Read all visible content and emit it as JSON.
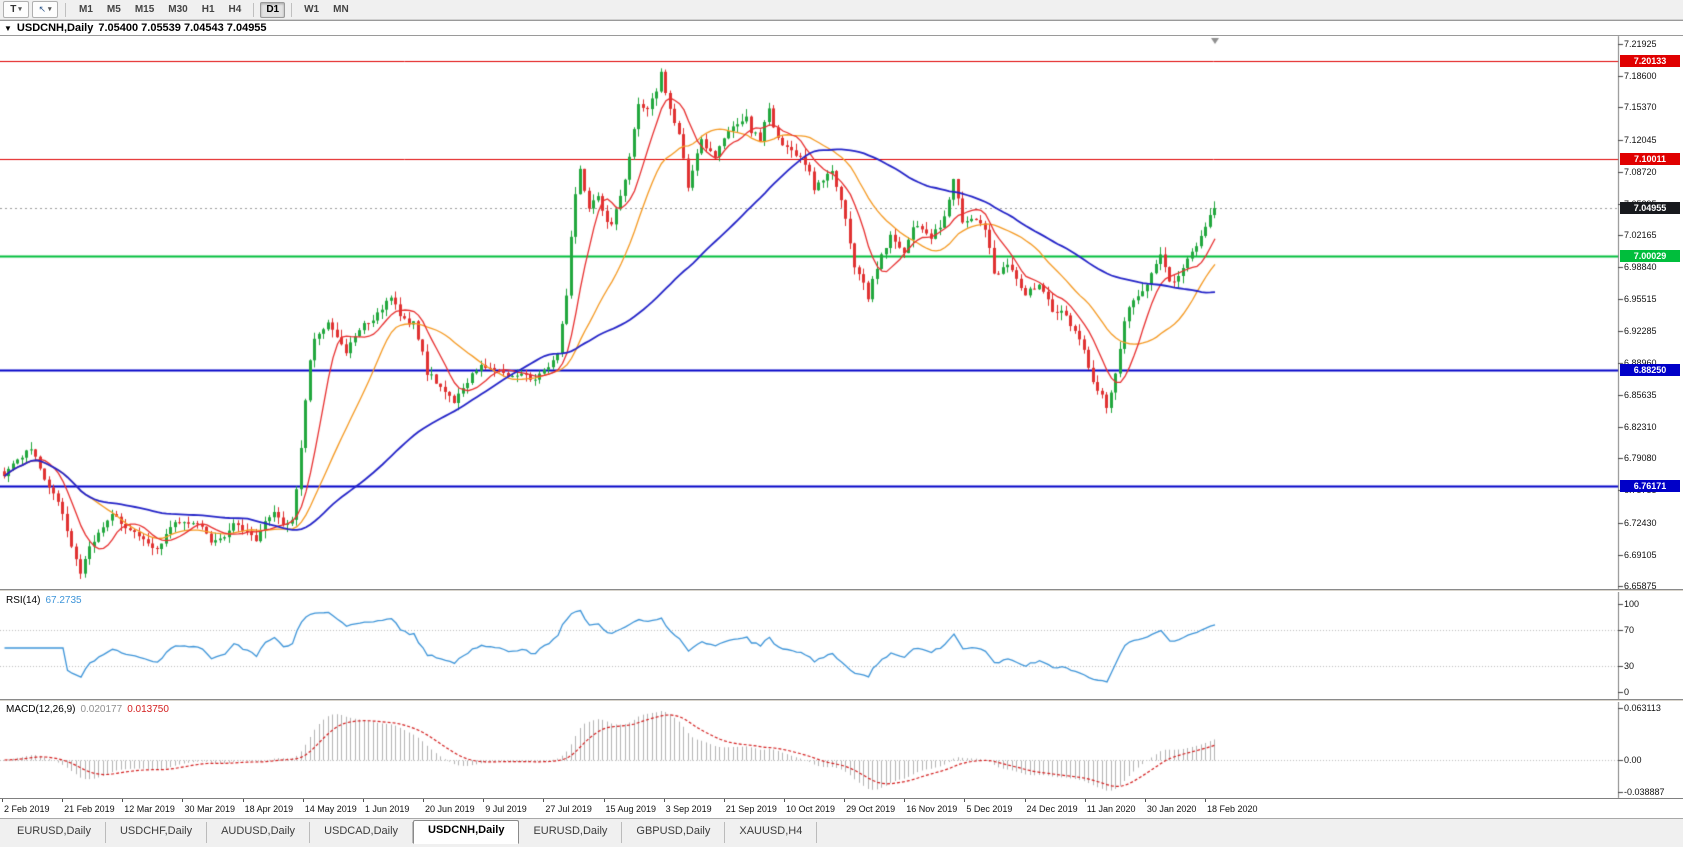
{
  "icons": {
    "dropdown_caret": "▾",
    "title_triangle": "▼",
    "cursor_arrow": "↖"
  },
  "toolbar": {
    "cursor_tool_label": "T",
    "timeframes": [
      "M1",
      "M5",
      "M15",
      "M30",
      "H1",
      "H4",
      "D1",
      "W1",
      "MN"
    ],
    "active_timeframe": "D1"
  },
  "chart": {
    "title": "USDCNH,Daily",
    "ohlc_text": "7.05400 7.05539 7.04543 7.04955",
    "current_price": "7.04955",
    "price_axis": [
      "7.21925",
      "7.18600",
      "7.15370",
      "7.12045",
      "7.08720",
      "7.05395",
      "7.02165",
      "6.98840",
      "6.95515",
      "6.92285",
      "6.88960",
      "6.85635",
      "6.82310",
      "6.79080",
      "6.75755",
      "6.72430",
      "6.69105",
      "6.65875"
    ],
    "hlines": [
      {
        "price": 7.20133,
        "label": "7.20133",
        "color": "#e00000",
        "width": 1
      },
      {
        "price": 7.10011,
        "label": "7.10011",
        "color": "#e00000",
        "width": 1
      },
      {
        "price": 7.00029,
        "label": "7.00029",
        "color": "#00be3c",
        "width": 2
      },
      {
        "price": 6.8825,
        "label": "6.88250",
        "color": "#0000c8",
        "width": 2
      },
      {
        "price": 6.76171,
        "label": "6.76171",
        "color": "#0000c8",
        "width": 2
      }
    ],
    "date_axis": [
      "2 Feb 2019",
      "21 Feb 2019",
      "12 Mar 2019",
      "30 Mar 2019",
      "18 Apr 2019",
      "14 May 2019",
      "1 Jun 2019",
      "20 Jun 2019",
      "9 Jul 2019",
      "27 Jul 2019",
      "15 Aug 2019",
      "3 Sep 2019",
      "21 Sep 2019",
      "10 Oct 2019",
      "29 Oct 2019",
      "16 Nov 2019",
      "5 Dec 2019",
      "24 Dec 2019",
      "11 Jan 2020",
      "30 Jan 2020",
      "18 Feb 2020"
    ]
  },
  "rsi": {
    "label": "RSI(14)",
    "value": "67.2735",
    "levels": [
      "100",
      "70",
      "30",
      "0"
    ],
    "dotted_levels": [
      70,
      30
    ]
  },
  "macd": {
    "label": "MACD(12,26,9)",
    "value_main": "0.020177",
    "value_signal": "0.013750",
    "axis": [
      "0.063113",
      "0.00",
      "-0.038887"
    ]
  },
  "tabs": [
    {
      "label": "EURUSD,Daily",
      "active": false
    },
    {
      "label": "USDCHF,Daily",
      "active": false
    },
    {
      "label": "AUDUSD,Daily",
      "active": false
    },
    {
      "label": "USDCAD,Daily",
      "active": false
    },
    {
      "label": "USDCNH,Daily",
      "active": true
    },
    {
      "label": "EURUSD,Daily",
      "active": false
    },
    {
      "label": "GBPUSD,Daily",
      "active": false
    },
    {
      "label": "XAUUSD,H4",
      "active": false
    }
  ],
  "chart_data": {
    "type": "candlestick",
    "symbol": "USDCNH",
    "timeframe": "Daily",
    "price_range": [
      6.65875,
      7.21925
    ],
    "num_candles": 270,
    "rsi_period": 14,
    "macd_params": [
      12,
      26,
      9
    ],
    "ma_periods": {
      "fast": 8,
      "mid": 20,
      "slow": 55
    },
    "macd_range": [
      -0.038887,
      0.063113
    ],
    "colors": {
      "bull": "#22a83e",
      "bear": "#e03232",
      "ma_fast": "#e83030",
      "ma_mid": "#f59a23",
      "ma_slow": "#2424c8",
      "rsi_line": "#3e95d9",
      "macd_hist": "#b4b4b4",
      "macd_signal": "#d42020",
      "macd_value_text": "#909090",
      "current_badge": "#17191d",
      "grid": "#bdbdbd",
      "axis_line": "#808080"
    },
    "close_anchors": [
      [
        0,
        6.775
      ],
      [
        3,
        6.79
      ],
      [
        6,
        6.802
      ],
      [
        9,
        6.77
      ],
      [
        12,
        6.747
      ],
      [
        15,
        6.7
      ],
      [
        17,
        6.672
      ],
      [
        19,
        6.698
      ],
      [
        22,
        6.72
      ],
      [
        24,
        6.732
      ],
      [
        27,
        6.72
      ],
      [
        29,
        6.713
      ],
      [
        32,
        6.7
      ],
      [
        34,
        6.696
      ],
      [
        36,
        6.71
      ],
      [
        38,
        6.726
      ],
      [
        41,
        6.722
      ],
      [
        44,
        6.719
      ],
      [
        46,
        6.705
      ],
      [
        49,
        6.712
      ],
      [
        51,
        6.722
      ],
      [
        53,
        6.716
      ],
      [
        56,
        6.708
      ],
      [
        58,
        6.728
      ],
      [
        60,
        6.735
      ],
      [
        62,
        6.72
      ],
      [
        64,
        6.73
      ],
      [
        65,
        6.757
      ],
      [
        66,
        6.8
      ],
      [
        67,
        6.85
      ],
      [
        68,
        6.893
      ],
      [
        69,
        6.915
      ],
      [
        71,
        6.924
      ],
      [
        72,
        6.93
      ],
      [
        74,
        6.915
      ],
      [
        76,
        6.9
      ],
      [
        78,
        6.916
      ],
      [
        80,
        6.93
      ],
      [
        82,
        6.936
      ],
      [
        84,
        6.946
      ],
      [
        86,
        6.956
      ],
      [
        88,
        6.94
      ],
      [
        90,
        6.928
      ],
      [
        91,
        6.932
      ],
      [
        93,
        6.9
      ],
      [
        94,
        6.88
      ],
      [
        96,
        6.87
      ],
      [
        98,
        6.86
      ],
      [
        100,
        6.848
      ],
      [
        102,
        6.862
      ],
      [
        104,
        6.88
      ],
      [
        106,
        6.885
      ],
      [
        109,
        6.882
      ],
      [
        112,
        6.874
      ],
      [
        115,
        6.877
      ],
      [
        118,
        6.873
      ],
      [
        121,
        6.883
      ],
      [
        123,
        6.9
      ],
      [
        124,
        6.93
      ],
      [
        125,
        6.962
      ],
      [
        126,
        7.02
      ],
      [
        127,
        7.062
      ],
      [
        128,
        7.09
      ],
      [
        129,
        7.068
      ],
      [
        130,
        7.05
      ],
      [
        131,
        7.056
      ],
      [
        132,
        7.062
      ],
      [
        133,
        7.045
      ],
      [
        135,
        7.03
      ],
      [
        136,
        7.046
      ],
      [
        137,
        7.06
      ],
      [
        138,
        7.08
      ],
      [
        139,
        7.1
      ],
      [
        140,
        7.13
      ],
      [
        141,
        7.158
      ],
      [
        143,
        7.152
      ],
      [
        145,
        7.17
      ],
      [
        146,
        7.192
      ],
      [
        147,
        7.168
      ],
      [
        148,
        7.15
      ],
      [
        149,
        7.14
      ],
      [
        150,
        7.128
      ],
      [
        151,
        7.1
      ],
      [
        152,
        7.07
      ],
      [
        153,
        7.09
      ],
      [
        155,
        7.12
      ],
      [
        156,
        7.114
      ],
      [
        158,
        7.1
      ],
      [
        159,
        7.112
      ],
      [
        161,
        7.13
      ],
      [
        163,
        7.135
      ],
      [
        165,
        7.142
      ],
      [
        166,
        7.13
      ],
      [
        168,
        7.12
      ],
      [
        169,
        7.136
      ],
      [
        170,
        7.15
      ],
      [
        171,
        7.134
      ],
      [
        172,
        7.12
      ],
      [
        174,
        7.11
      ],
      [
        177,
        7.1
      ],
      [
        179,
        7.086
      ],
      [
        180,
        7.07
      ],
      [
        182,
        7.08
      ],
      [
        184,
        7.09
      ],
      [
        185,
        7.074
      ],
      [
        187,
        7.04
      ],
      [
        188,
        7.012
      ],
      [
        189,
        6.99
      ],
      [
        191,
        6.97
      ],
      [
        192,
        6.958
      ],
      [
        193,
        6.976
      ],
      [
        195,
        7.0
      ],
      [
        197,
        7.02
      ],
      [
        198,
        7.012
      ],
      [
        200,
        7.0
      ],
      [
        202,
        7.03
      ],
      [
        204,
        7.026
      ],
      [
        206,
        7.02
      ],
      [
        208,
        7.032
      ],
      [
        209,
        7.04
      ],
      [
        211,
        7.078
      ],
      [
        212,
        7.058
      ],
      [
        213,
        7.032
      ],
      [
        215,
        7.036
      ],
      [
        216,
        7.04
      ],
      [
        218,
        7.03
      ],
      [
        219,
        7.006
      ],
      [
        220,
        6.982
      ],
      [
        222,
        6.986
      ],
      [
        223,
        6.99
      ],
      [
        225,
        6.976
      ],
      [
        227,
        6.962
      ],
      [
        229,
        6.966
      ],
      [
        230,
        6.97
      ],
      [
        232,
        6.955
      ],
      [
        233,
        6.94
      ],
      [
        235,
        6.946
      ],
      [
        237,
        6.93
      ],
      [
        239,
        6.914
      ],
      [
        240,
        6.9
      ],
      [
        241,
        6.886
      ],
      [
        242,
        6.87
      ],
      [
        244,
        6.854
      ],
      [
        245,
        6.844
      ],
      [
        246,
        6.86
      ],
      [
        247,
        6.88
      ],
      [
        248,
        6.906
      ],
      [
        249,
        6.93
      ],
      [
        250,
        6.944
      ],
      [
        252,
        6.96
      ],
      [
        254,
        6.97
      ],
      [
        255,
        6.98
      ],
      [
        256,
        6.99
      ],
      [
        257,
        7.002
      ],
      [
        258,
        6.986
      ],
      [
        259,
        6.972
      ],
      [
        260,
        6.976
      ],
      [
        261,
        6.982
      ],
      [
        262,
        6.99
      ],
      [
        263,
        6.996
      ],
      [
        264,
        7.002
      ],
      [
        265,
        7.012
      ],
      [
        266,
        7.02
      ],
      [
        267,
        7.032
      ],
      [
        268,
        7.044
      ],
      [
        269,
        7.0496
      ]
    ]
  }
}
